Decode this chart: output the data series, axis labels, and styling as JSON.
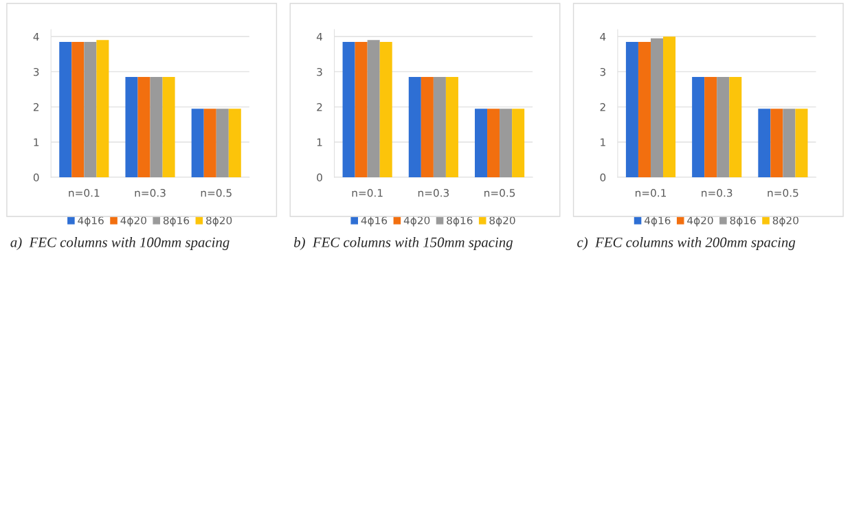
{
  "chart_data": [
    {
      "type": "bar",
      "categories": [
        "n=0.1",
        "n=0.3",
        "n=0.5"
      ],
      "ylim": [
        0,
        4.2
      ],
      "yticks": [
        0,
        1,
        2,
        3,
        4
      ],
      "grid": "y",
      "legend": "bottom",
      "series": [
        {
          "name": "4ϕ16",
          "color": "#2e6fd4",
          "values": [
            3.85,
            2.85,
            1.95
          ]
        },
        {
          "name": "4ϕ20",
          "color": "#f26f0f",
          "values": [
            3.85,
            2.85,
            1.95
          ]
        },
        {
          "name": "8ϕ16",
          "color": "#9a9a9a",
          "values": [
            3.85,
            2.85,
            1.95
          ]
        },
        {
          "name": "8ϕ20",
          "color": "#fcc40a",
          "values": [
            3.9,
            2.85,
            1.95
          ]
        }
      ],
      "annotations": [
        "a)  FEC columns with 100mm spacing"
      ]
    },
    {
      "type": "bar",
      "categories": [
        "n=0.1",
        "n=0.3",
        "n=0.5"
      ],
      "ylim": [
        0,
        4.2
      ],
      "yticks": [
        0,
        1,
        2,
        3,
        4
      ],
      "grid": "y",
      "legend": "bottom",
      "series": [
        {
          "name": "4ϕ16",
          "color": "#2e6fd4",
          "values": [
            3.85,
            2.85,
            1.95
          ]
        },
        {
          "name": "4ϕ20",
          "color": "#f26f0f",
          "values": [
            3.85,
            2.85,
            1.95
          ]
        },
        {
          "name": "8ϕ16",
          "color": "#9a9a9a",
          "values": [
            3.9,
            2.85,
            1.95
          ]
        },
        {
          "name": "8ϕ20",
          "color": "#fcc40a",
          "values": [
            3.85,
            2.85,
            1.95
          ]
        }
      ],
      "annotations": [
        "b)  FEC columns with 150mm spacing"
      ]
    },
    {
      "type": "bar",
      "categories": [
        "n=0.1",
        "n=0.3",
        "n=0.5"
      ],
      "ylim": [
        0,
        4.2
      ],
      "yticks": [
        0,
        1,
        2,
        3,
        4
      ],
      "grid": "y",
      "legend": "bottom",
      "series": [
        {
          "name": "4ϕ16",
          "color": "#2e6fd4",
          "values": [
            3.85,
            2.85,
            1.95
          ]
        },
        {
          "name": "4ϕ20",
          "color": "#f26f0f",
          "values": [
            3.85,
            2.85,
            1.95
          ]
        },
        {
          "name": "8ϕ16",
          "color": "#9a9a9a",
          "values": [
            3.95,
            2.85,
            1.95
          ]
        },
        {
          "name": "8ϕ20",
          "color": "#fcc40a",
          "values": [
            4.0,
            2.85,
            1.95
          ]
        }
      ],
      "annotations": [
        "c)  FEC columns with 200mm spacing"
      ]
    }
  ]
}
